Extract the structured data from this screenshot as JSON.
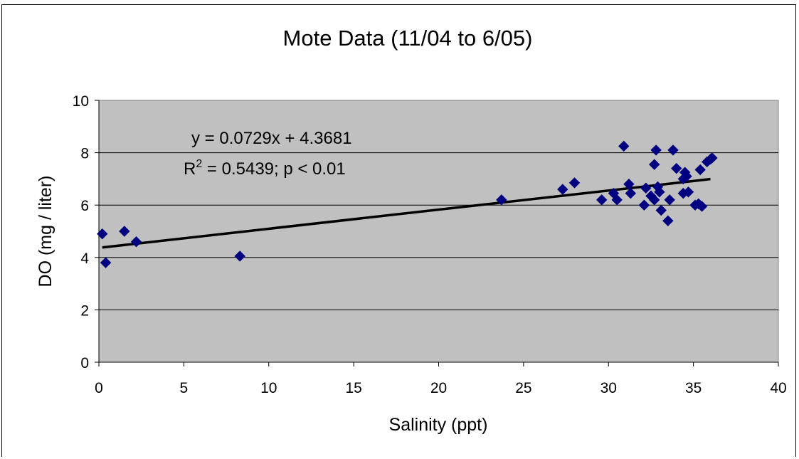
{
  "chart_data": {
    "type": "scatter",
    "title": "Mote Data (11/04 to 6/05)",
    "xlabel": "Salinity (ppt)",
    "ylabel": "DO (mg / liter)",
    "xlim": [
      0,
      40
    ],
    "ylim": [
      0,
      10
    ],
    "x_ticks": [
      "0",
      "5",
      "10",
      "15",
      "20",
      "25",
      "30",
      "35",
      "40"
    ],
    "y_ticks": [
      "0",
      "2",
      "4",
      "6",
      "8",
      "10"
    ],
    "grid": "horizontal",
    "plot_background": "#c0c0c0",
    "marker_color": "#000080",
    "trendline": {
      "slope": 0.0729,
      "intercept": 4.3681,
      "x_range": [
        0.2,
        36.0
      ],
      "equation_label": "y = 0.0729x + 4.3681",
      "r2_prefix": "R",
      "r2_superscript": "2",
      "r2_suffix": " = 0.5439; p < 0.01"
    },
    "points": [
      {
        "x": 0.2,
        "y": 4.9
      },
      {
        "x": 0.4,
        "y": 3.8
      },
      {
        "x": 1.5,
        "y": 5.0
      },
      {
        "x": 2.2,
        "y": 4.6
      },
      {
        "x": 8.3,
        "y": 4.05
      },
      {
        "x": 23.7,
        "y": 6.2
      },
      {
        "x": 27.3,
        "y": 6.6
      },
      {
        "x": 28.0,
        "y": 6.85
      },
      {
        "x": 29.6,
        "y": 6.2
      },
      {
        "x": 30.3,
        "y": 6.45
      },
      {
        "x": 30.5,
        "y": 6.2
      },
      {
        "x": 30.9,
        "y": 8.25
      },
      {
        "x": 31.2,
        "y": 6.8
      },
      {
        "x": 31.3,
        "y": 6.45
      },
      {
        "x": 32.1,
        "y": 6.0
      },
      {
        "x": 32.2,
        "y": 6.65
      },
      {
        "x": 32.5,
        "y": 6.35
      },
      {
        "x": 32.7,
        "y": 7.55
      },
      {
        "x": 32.7,
        "y": 6.2
      },
      {
        "x": 32.8,
        "y": 8.1
      },
      {
        "x": 32.9,
        "y": 6.7
      },
      {
        "x": 33.0,
        "y": 6.5
      },
      {
        "x": 33.1,
        "y": 5.8
      },
      {
        "x": 33.5,
        "y": 5.4
      },
      {
        "x": 33.6,
        "y": 6.2
      },
      {
        "x": 33.8,
        "y": 8.1
      },
      {
        "x": 34.0,
        "y": 7.4
      },
      {
        "x": 34.4,
        "y": 6.45
      },
      {
        "x": 34.4,
        "y": 7.0
      },
      {
        "x": 34.5,
        "y": 7.25
      },
      {
        "x": 34.6,
        "y": 7.1
      },
      {
        "x": 34.7,
        "y": 6.5
      },
      {
        "x": 35.1,
        "y": 6.0
      },
      {
        "x": 35.3,
        "y": 6.05
      },
      {
        "x": 35.4,
        "y": 7.35
      },
      {
        "x": 35.5,
        "y": 5.95
      },
      {
        "x": 35.8,
        "y": 7.65
      },
      {
        "x": 36.0,
        "y": 7.75
      },
      {
        "x": 36.1,
        "y": 7.8
      }
    ]
  }
}
